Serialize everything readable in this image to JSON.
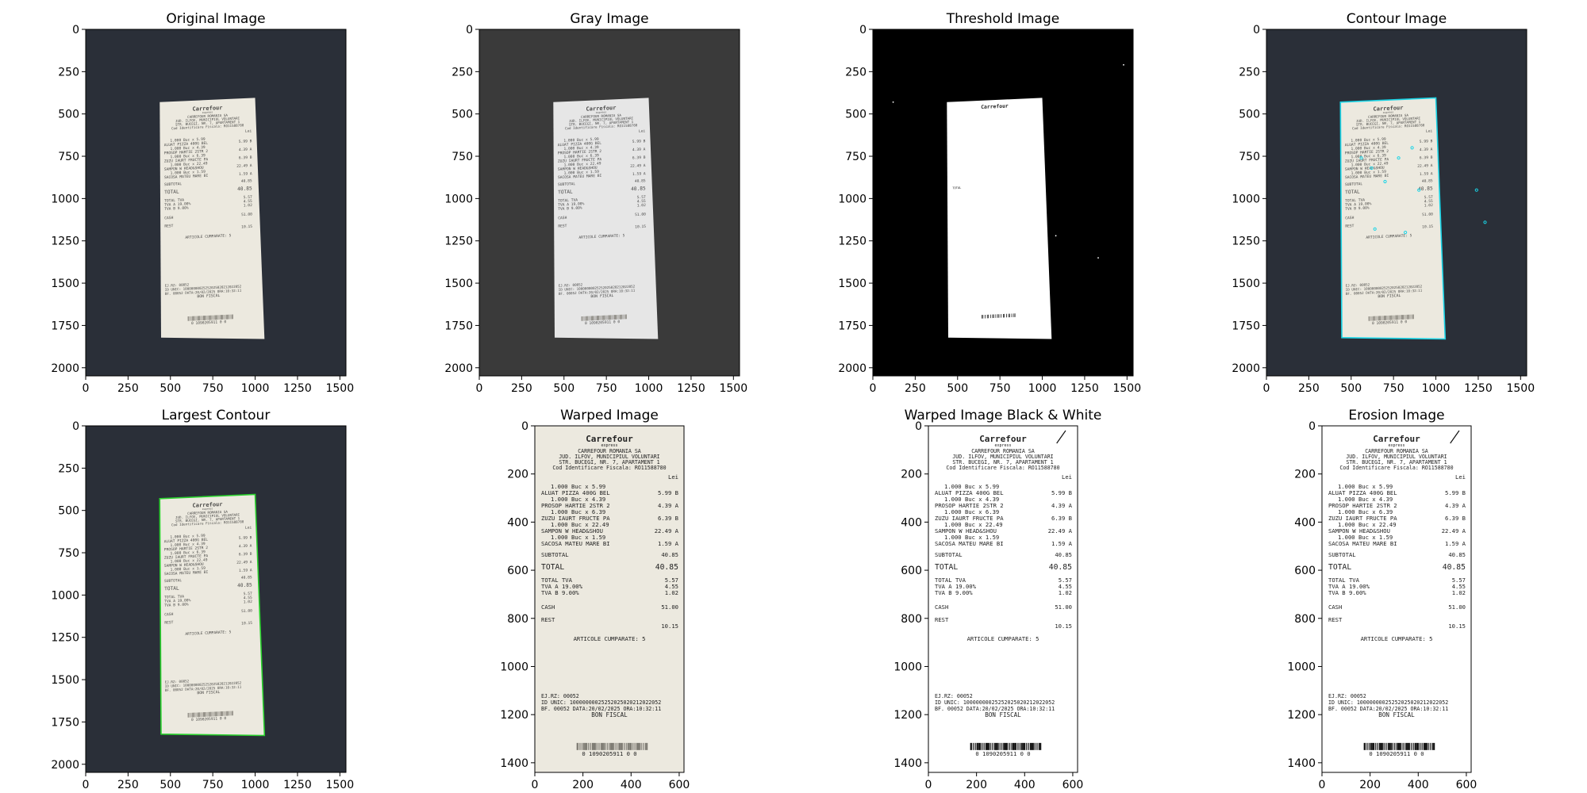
{
  "colors": {
    "background": "#2a2f38",
    "receipt_paper": "#ece9df",
    "receipt_paper_gray": "#e6e6e6",
    "receipt_ink": "#7d7a72",
    "threshold_background": "#000000",
    "threshold_fg": "#ffffff",
    "contour_line": "#19d4e6",
    "largest_contour_line": "#29d12c",
    "bw_paper": "#ffffff",
    "bw_ink": "#111111",
    "axis": "#000000"
  },
  "panels": [
    {
      "title": "Original Image",
      "kind": "photo",
      "x_ticks": [
        "0",
        "250",
        "500",
        "750",
        "1000",
        "1250",
        "1500"
      ],
      "y_ticks": [
        "0",
        "250",
        "500",
        "750",
        "1000",
        "1250",
        "1500",
        "1750",
        "2000"
      ]
    },
    {
      "title": "Gray Image",
      "kind": "gray",
      "x_ticks": [
        "0",
        "250",
        "500",
        "750",
        "1000",
        "1250",
        "1500"
      ],
      "y_ticks": [
        "0",
        "250",
        "500",
        "750",
        "1000",
        "1250",
        "1500",
        "1750",
        "2000"
      ]
    },
    {
      "title": "Threshold Image",
      "kind": "threshold",
      "x_ticks": [
        "0",
        "250",
        "500",
        "750",
        "1000",
        "1250",
        "1500"
      ],
      "y_ticks": [
        "0",
        "250",
        "500",
        "750",
        "1000",
        "1250",
        "1500",
        "1750",
        "2000"
      ]
    },
    {
      "title": "Contour Image",
      "kind": "contours",
      "x_ticks": [
        "0",
        "250",
        "500",
        "750",
        "1000",
        "1250",
        "1500"
      ],
      "y_ticks": [
        "0",
        "250",
        "500",
        "750",
        "1000",
        "1250",
        "1500",
        "1750",
        "2000"
      ]
    },
    {
      "title": "Largest Contour",
      "kind": "largest",
      "x_ticks": [
        "0",
        "250",
        "500",
        "750",
        "1000",
        "1250",
        "1500"
      ],
      "y_ticks": [
        "0",
        "250",
        "500",
        "750",
        "1000",
        "1250",
        "1500",
        "1750",
        "2000"
      ]
    },
    {
      "title": "Warped Image",
      "kind": "warped",
      "x_ticks": [
        "0",
        "200",
        "400",
        "600"
      ],
      "y_ticks": [
        "0",
        "200",
        "400",
        "600",
        "800",
        "1000",
        "1200",
        "1400"
      ]
    },
    {
      "title": "Warped Image Black & White",
      "kind": "bw",
      "x_ticks": [
        "0",
        "200",
        "400",
        "600"
      ],
      "y_ticks": [
        "0",
        "200",
        "400",
        "600",
        "800",
        "1000",
        "1200",
        "1400"
      ]
    },
    {
      "title": "Erosion Image",
      "kind": "erosion",
      "x_ticks": [
        "0",
        "200",
        "400",
        "600"
      ],
      "y_ticks": [
        "0",
        "200",
        "400",
        "600",
        "800",
        "1000",
        "1200",
        "1400"
      ]
    }
  ],
  "receipt": {
    "brand": "Carrefour",
    "brand_sub": "express",
    "header": [
      "CARREFOUR ROMANIA SA",
      "JUD. ILFOV, MUNICIPIUL VOLUNTARI",
      "STR. BUCEGI, NR. 7, APARTAMENT 1",
      "Cod Identificare Fiscala: RO11588780"
    ],
    "currency": "Lei",
    "items": [
      {
        "qty": "1.000   Buc x 5.99",
        "name": "ALUAT PIZZA 400G BEL",
        "price": "5.99 B"
      },
      {
        "qty": "1.000   Buc x 4.39",
        "name": "PROSOP HARTIE 2STR 2",
        "price": "4.39 A"
      },
      {
        "qty": "1.000   Buc x 6.39",
        "name": "ZUZU IAURT FRUCTE PA",
        "price": "6.39 B"
      },
      {
        "qty": "1.000   Buc x 22.49",
        "name": "SAMPON W HEAD&SHOU",
        "price": "22.49 A"
      },
      {
        "qty": "1.000   Buc x 1.59",
        "name": "SACOSA MATEU MARE BI",
        "price": "1.59 A"
      }
    ],
    "subtotal_label": "SUBTOTAL",
    "subtotal_value": "40.85",
    "total_label": "TOTAL",
    "total_value": "40.85",
    "tax": [
      {
        "label": "TOTAL TVA",
        "value": "5.57"
      },
      {
        "label": "TVA A   19.00%",
        "value": "4.55"
      },
      {
        "label": "TVA B   9.00%",
        "value": "1.02"
      }
    ],
    "cash_label": "CASH",
    "cash_value": "51.00",
    "rest_label": "REST",
    "rest_value": "10.15",
    "articles": "ARTICOLE CUMPARATE: 5",
    "footer": [
      "EJ.RZ: 00052",
      "ID UNIC: 10000000025252025020212022052",
      "BF. 00052    DATA:20/02/2025    ORA:10:32:11",
      "BON FISCAL"
    ],
    "barcode_digits": "0 1090205911 0 0"
  }
}
